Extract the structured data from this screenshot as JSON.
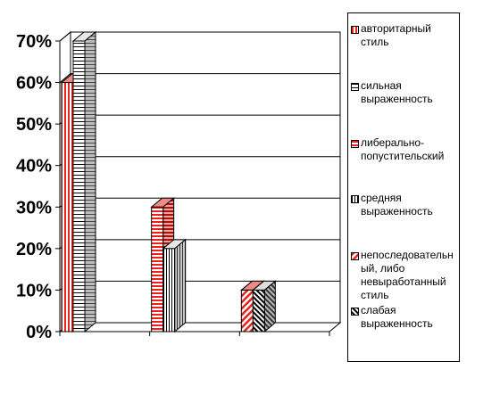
{
  "chart_data": {
    "type": "bar",
    "style": "3d-clustered",
    "categories": [
      "",
      "",
      ""
    ],
    "series": [
      {
        "name": "авторитарный стиль",
        "values": [
          60,
          null,
          null
        ],
        "color": "#e8211b",
        "pattern": "vertical-stripes-red"
      },
      {
        "name": "сильная выраженность",
        "values": [
          70,
          null,
          null
        ],
        "color": "#ffffff",
        "pattern": "horizontal-stripes-black"
      },
      {
        "name": "либерально-попустительский",
        "values": [
          null,
          30,
          null
        ],
        "color": "#e8211b",
        "pattern": "horizontal-stripes-red"
      },
      {
        "name": "средняя выраженность",
        "values": [
          null,
          20,
          null
        ],
        "color": "#ffffff",
        "pattern": "vertical-stripes-black"
      },
      {
        "name": "непоследовательный, либо невыработанный стиль",
        "label_lines": [
          "непоследовательн",
          "ый, либо",
          "невыработанный",
          "стиль"
        ],
        "values": [
          null,
          null,
          10
        ],
        "color": "#e8211b",
        "pattern": "diagonal-red"
      },
      {
        "name": "слабая выраженность",
        "values": [
          null,
          null,
          10
        ],
        "color": "#ffffff",
        "pattern": "diagonal-black"
      }
    ],
    "ylim": [
      0,
      70
    ],
    "yticks": [
      "0%",
      "10%",
      "20%",
      "30%",
      "40%",
      "50%",
      "60%",
      "70%"
    ],
    "grid": true,
    "legend_position": "right"
  }
}
